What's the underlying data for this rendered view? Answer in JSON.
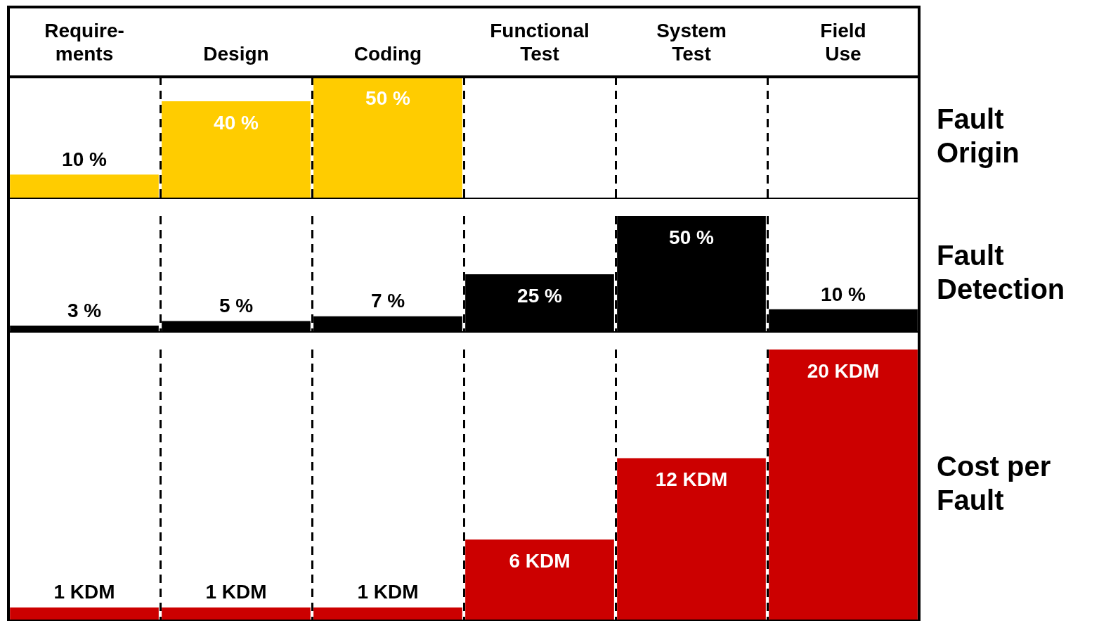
{
  "chart_data": [
    {
      "type": "bar",
      "categories": [
        "Require-ments",
        "Design",
        "Coding",
        "Functional Test",
        "System Test",
        "Field Use"
      ],
      "grid": "x",
      "tick_labels": "x",
      "series": [
        {
          "name": "Fault Origin",
          "color": "#ffcc00",
          "values": [
            10,
            40,
            50,
            null,
            null,
            null
          ],
          "value_labels": [
            "10 %",
            "40 %",
            "50 %",
            null,
            null,
            null
          ]
        }
      ]
    },
    {
      "type": "bar",
      "categories": [
        null,
        null,
        null,
        null,
        null,
        null
      ],
      "grid": "x",
      "tick_labels": false,
      "series": [
        {
          "name": "Fault Detection",
          "color": "#000000",
          "values": [
            3,
            5,
            7,
            25,
            50,
            10
          ],
          "value_labels": [
            "3 %",
            "5 %",
            "7 %",
            "25 %",
            "50 %",
            "10 %"
          ]
        }
      ]
    },
    {
      "type": "bar",
      "categories": [
        null,
        null,
        null,
        null,
        null,
        null
      ],
      "grid": "x",
      "tick_labels": false,
      "series": [
        {
          "name": "Cost per Fault",
          "color": "#cc0000",
          "values": [
            1,
            1,
            1,
            6,
            12,
            20
          ],
          "value_labels": [
            "1 KDM",
            "1 KDM",
            "1 KDM",
            "6 KDM",
            "12 KDM",
            "20 KDM"
          ]
        }
      ]
    }
  ]
}
